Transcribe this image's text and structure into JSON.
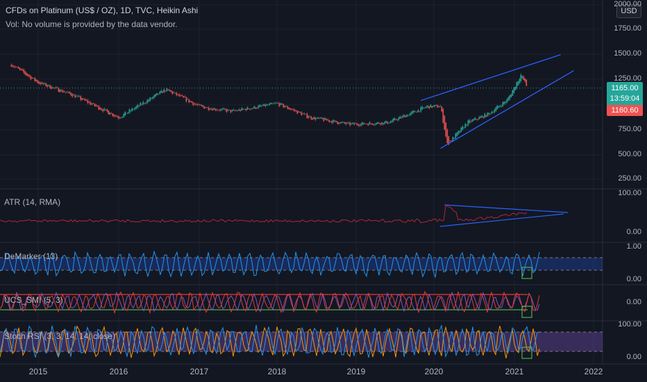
{
  "header": {
    "title": "CFDs on Platinum (US$ / OZ), 1D, TVC, Heikin Ashi",
    "vol_note": "Vol: No volume is provided by the data vendor."
  },
  "currency": "USD",
  "price_scale": {
    "ticks": [
      "2000.00",
      "1750.00",
      "1500.00",
      "1250.00",
      "750.00",
      "500.00",
      "250.00"
    ],
    "last_price": "1165.00",
    "countdown": "13:59:04",
    "prev_price": "1160.60"
  },
  "panels": {
    "atr": {
      "label": "ATR (14, RMA)",
      "ticks": [
        "100.00",
        "0.00"
      ]
    },
    "demarker": {
      "label": "DeMarker (13)",
      "ticks": [
        "1.00",
        "0.00"
      ]
    },
    "smi": {
      "label": "UCS_SMI (5, 3)",
      "ticks": [
        "0.00"
      ]
    },
    "stochrsi": {
      "label": "Stoch RSI (3, 3, 14, 14, close)",
      "ticks": [
        "100.00",
        "0.00"
      ]
    }
  },
  "x_axis": {
    "ticks": [
      "2015",
      "2016",
      "2017",
      "2018",
      "2019",
      "2020",
      "2021",
      "2022"
    ]
  },
  "colors": {
    "background": "#131722",
    "up": "#26a69a",
    "down": "#ef5350",
    "trendline": "#2962ff",
    "atr_line": "#b22833",
    "demarker_line": "#2196f3",
    "smi_line": "#e53935",
    "stoch_k": "#ff9800",
    "stoch_band": "#7e57c2"
  },
  "chart_data": {
    "type": "line",
    "title": "CFDs on Platinum (US$ / OZ), 1D, TVC, Heikin Ashi",
    "xlabel": "",
    "ylabel": "",
    "x": [
      "2014-09",
      "2015-01",
      "2015-06",
      "2016-01",
      "2016-08",
      "2017-01",
      "2017-06",
      "2018-01",
      "2018-06",
      "2018-12",
      "2019-06",
      "2019-12",
      "2020-02",
      "2020-03",
      "2020-06",
      "2020-09",
      "2020-12",
      "2021-02",
      "2021-03"
    ],
    "series": [
      {
        "values": [
          1400,
          1220,
          1100,
          870,
          1150,
          980,
          930,
          1010,
          870,
          800,
          820,
          980,
          980,
          600,
          820,
          900,
          1050,
          1300,
          1165
        ]
      }
    ],
    "ylim": [
      250,
      2000
    ],
    "grid": true,
    "annotations": [
      "rising wedge trendlines on price",
      "converging trendlines on ATR"
    ]
  }
}
